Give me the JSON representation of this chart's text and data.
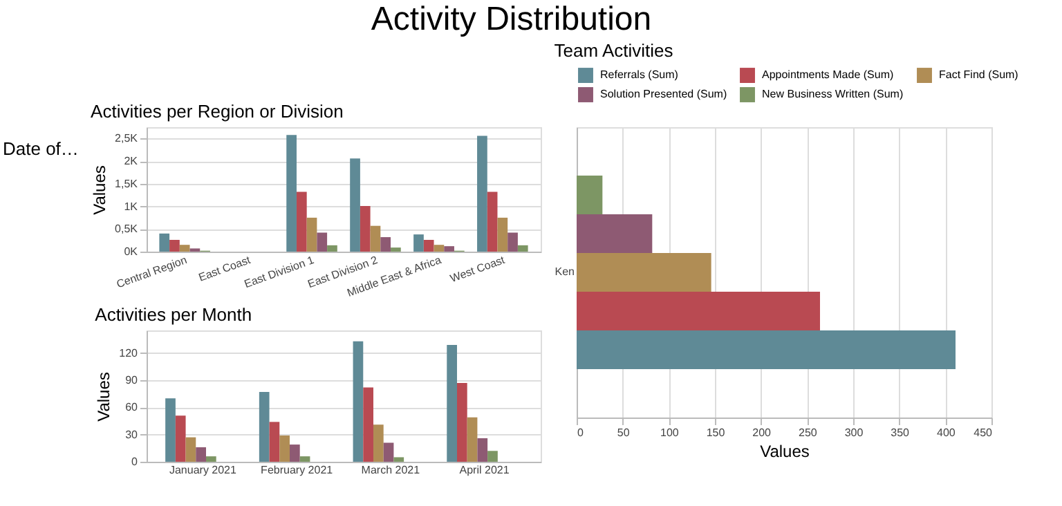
{
  "chart_data": [
    {
      "type": "other",
      "title": "Activity Distribution",
      "annotations": [
        "Date of…"
      ]
    },
    {
      "type": "bar",
      "title": "Activities per Region or Division",
      "ylabel": "Values",
      "categories": [
        "Central Region",
        "East Coast",
        "East Division 1",
        "East Division 2",
        "Middle East & Africa",
        "West Coast"
      ],
      "series": [
        {
          "color": "#5f8a96",
          "values": [
            400,
            null,
            2580,
            2060,
            380,
            2560
          ]
        },
        {
          "color": "#b94a52",
          "values": [
            260,
            null,
            1320,
            1010,
            260,
            1320
          ]
        },
        {
          "color": "#b08d55",
          "values": [
            150,
            null,
            750,
            570,
            150,
            750
          ]
        },
        {
          "color": "#8e5a73",
          "values": [
            70,
            null,
            420,
            320,
            120,
            420
          ]
        },
        {
          "color": "#7d9664",
          "values": [
            20,
            null,
            140,
            90,
            20,
            140
          ]
        }
      ],
      "ylim": [
        0,
        2750
      ],
      "yticks": [
        {
          "value": 0,
          "label": "0K"
        },
        {
          "value": 500,
          "label": "0,5K"
        },
        {
          "value": 1000,
          "label": "1K"
        },
        {
          "value": 1500,
          "label": "1,5K"
        },
        {
          "value": 2000,
          "label": "2K"
        },
        {
          "value": 2500,
          "label": "2,5K"
        }
      ],
      "grid": "y",
      "legend": false
    },
    {
      "type": "bar",
      "title": "Activities per Month",
      "ylabel": "Values",
      "categories": [
        "January 2021",
        "February 2021",
        "March 2021",
        "April 2021"
      ],
      "series": [
        {
          "color": "#5f8a96",
          "values": [
            70,
            77,
            133,
            129
          ]
        },
        {
          "color": "#b94a52",
          "values": [
            51,
            44,
            82,
            87
          ]
        },
        {
          "color": "#b08d55",
          "values": [
            27,
            29,
            41,
            49
          ]
        },
        {
          "color": "#8e5a73",
          "values": [
            16,
            19,
            21,
            26
          ]
        },
        {
          "color": "#7d9664",
          "values": [
            6,
            6,
            5,
            12
          ]
        }
      ],
      "ylim": [
        0,
        145
      ],
      "yticks": [
        0,
        30,
        60,
        90,
        120
      ],
      "grid": "y",
      "legend": false
    },
    {
      "type": "bar",
      "orientation": "horizontal",
      "title": "Team Activities",
      "xlabel": "Values",
      "categories": [
        "Ken"
      ],
      "series": [
        {
          "name": "Referrals (Sum)",
          "color": "#5f8a96",
          "values": [
            411
          ]
        },
        {
          "name": "Appointments Made (Sum)",
          "color": "#b94a52",
          "values": [
            264
          ]
        },
        {
          "name": "Fact Find (Sum)",
          "color": "#b08d55",
          "values": [
            146
          ]
        },
        {
          "name": "Solution Presented (Sum)",
          "color": "#8e5a73",
          "values": [
            82
          ]
        },
        {
          "name": "New Business Written (Sum)",
          "color": "#7d9664",
          "values": [
            28
          ]
        }
      ],
      "xlim": [
        0,
        450
      ],
      "xticks": [
        0,
        50,
        100,
        150,
        200,
        250,
        300,
        350,
        400,
        450
      ],
      "grid": "x",
      "legend": "top"
    }
  ]
}
